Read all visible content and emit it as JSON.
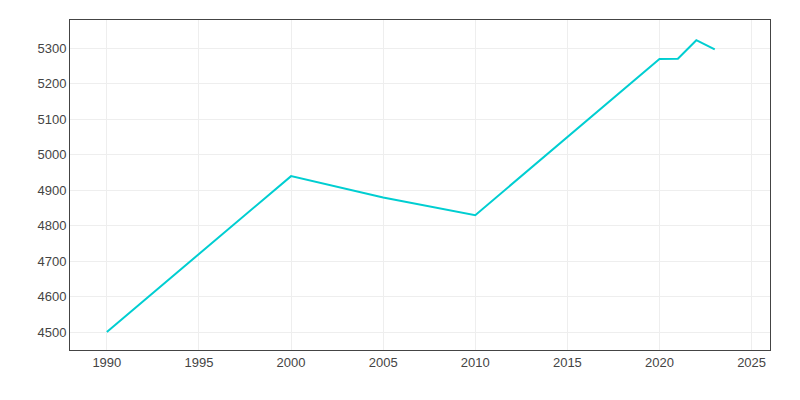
{
  "chart_data": {
    "type": "line",
    "x": [
      1990,
      2000,
      2005,
      2010,
      2020,
      2021,
      2022,
      2023
    ],
    "values": [
      4501,
      4940,
      4880,
      4830,
      5270,
      5271,
      5323,
      5297
    ],
    "color": "#00CED1",
    "xlim": [
      1988,
      2026
    ],
    "ylim": [
      4450,
      5380
    ],
    "xticks": [
      1990,
      1995,
      2000,
      2005,
      2010,
      2015,
      2020,
      2025
    ],
    "yticks": [
      4500,
      4600,
      4700,
      4800,
      4900,
      5000,
      5100,
      5200,
      5300
    ],
    "grid": true
  }
}
